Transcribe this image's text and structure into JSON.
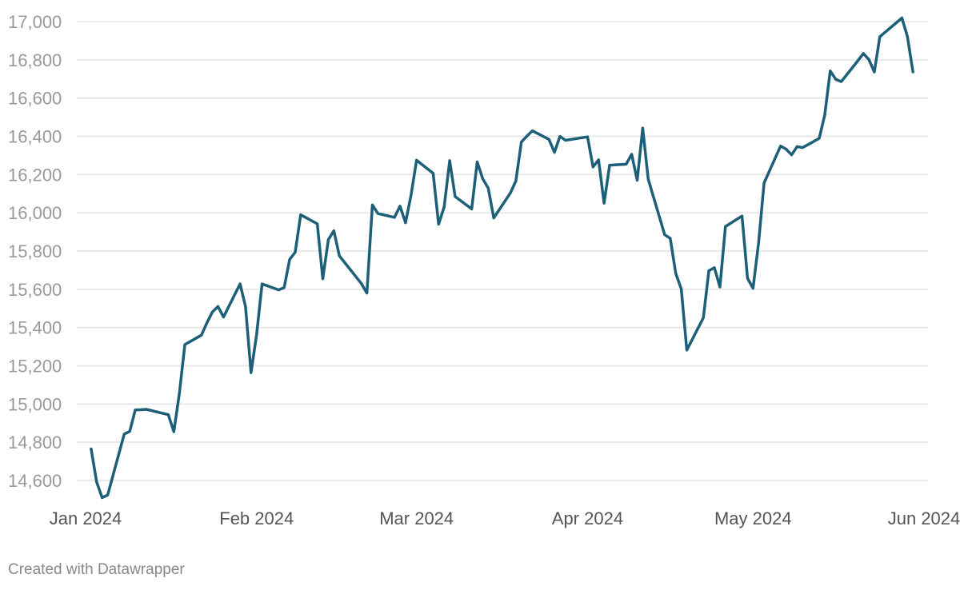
{
  "chart_data": {
    "type": "line",
    "title": "",
    "xlabel": "",
    "ylabel": "",
    "ylim": [
      14500,
      17100
    ],
    "yticks": [
      14600,
      14800,
      15000,
      15200,
      15400,
      15600,
      15800,
      16000,
      16200,
      16400,
      16600,
      16800,
      17000
    ],
    "ytick_labels": [
      "14,600",
      "14,800",
      "15,000",
      "15,200",
      "15,400",
      "15,600",
      "15,800",
      "16,000",
      "16,200",
      "16,400",
      "16,600",
      "16,800",
      "17,000"
    ],
    "xticks": [
      "2024-01-01",
      "2024-02-01",
      "2024-03-01",
      "2024-04-01",
      "2024-05-01",
      "2024-06-01"
    ],
    "xtick_labels": [
      "Jan 2024",
      "Feb 2024",
      "Mar 2024",
      "Apr 2024",
      "May 2024",
      "Jun 2024"
    ],
    "grid": true,
    "color": "#1d5f78",
    "series": [
      {
        "points": [
          [
            "2024-01-02",
            14765
          ],
          [
            "2024-01-03",
            14592
          ],
          [
            "2024-01-04",
            14510
          ],
          [
            "2024-01-05",
            14524
          ],
          [
            "2024-01-08",
            14843
          ],
          [
            "2024-01-09",
            14857
          ],
          [
            "2024-01-10",
            14969
          ],
          [
            "2024-01-11",
            14970
          ],
          [
            "2024-01-12",
            14972
          ],
          [
            "2024-01-16",
            14944
          ],
          [
            "2024-01-17",
            14855
          ],
          [
            "2024-01-18",
            15055
          ],
          [
            "2024-01-19",
            15311
          ],
          [
            "2024-01-22",
            15360
          ],
          [
            "2024-01-23",
            15425
          ],
          [
            "2024-01-24",
            15482
          ],
          [
            "2024-01-25",
            15510
          ],
          [
            "2024-01-26",
            15455
          ],
          [
            "2024-01-29",
            15628
          ],
          [
            "2024-01-30",
            15509
          ],
          [
            "2024-01-31",
            15164
          ],
          [
            "2024-02-01",
            15361
          ],
          [
            "2024-02-02",
            15628
          ],
          [
            "2024-02-05",
            15597
          ],
          [
            "2024-02-06",
            15609
          ],
          [
            "2024-02-07",
            15756
          ],
          [
            "2024-02-08",
            15794
          ],
          [
            "2024-02-09",
            15990
          ],
          [
            "2024-02-12",
            15942
          ],
          [
            "2024-02-13",
            15655
          ],
          [
            "2024-02-14",
            15859
          ],
          [
            "2024-02-15",
            15906
          ],
          [
            "2024-02-16",
            15775
          ],
          [
            "2024-02-20",
            15630
          ],
          [
            "2024-02-21",
            15580
          ],
          [
            "2024-02-22",
            16041
          ],
          [
            "2024-02-23",
            15996
          ],
          [
            "2024-02-26",
            15976
          ],
          [
            "2024-02-27",
            16035
          ],
          [
            "2024-02-28",
            15948
          ],
          [
            "2024-02-29",
            16092
          ],
          [
            "2024-03-01",
            16275
          ],
          [
            "2024-03-04",
            16207
          ],
          [
            "2024-03-05",
            15940
          ],
          [
            "2024-03-06",
            16031
          ],
          [
            "2024-03-07",
            16273
          ],
          [
            "2024-03-08",
            16085
          ],
          [
            "2024-03-11",
            16020
          ],
          [
            "2024-03-12",
            16266
          ],
          [
            "2024-03-13",
            16178
          ],
          [
            "2024-03-14",
            16129
          ],
          [
            "2024-03-15",
            15973
          ],
          [
            "2024-03-18",
            16103
          ],
          [
            "2024-03-19",
            16166
          ],
          [
            "2024-03-20",
            16370
          ],
          [
            "2024-03-21",
            16401
          ],
          [
            "2024-03-22",
            16429
          ],
          [
            "2024-03-25",
            16384
          ],
          [
            "2024-03-26",
            16316
          ],
          [
            "2024-03-27",
            16400
          ],
          [
            "2024-03-28",
            16379
          ],
          [
            "2024-04-01",
            16397
          ],
          [
            "2024-04-02",
            16240
          ],
          [
            "2024-04-03",
            16277
          ],
          [
            "2024-04-04",
            16050
          ],
          [
            "2024-04-05",
            16249
          ],
          [
            "2024-04-08",
            16254
          ],
          [
            "2024-04-09",
            16306
          ],
          [
            "2024-04-10",
            16170
          ],
          [
            "2024-04-11",
            16443
          ],
          [
            "2024-04-12",
            16175
          ],
          [
            "2024-04-15",
            15885
          ],
          [
            "2024-04-16",
            15866
          ],
          [
            "2024-04-17",
            15683
          ],
          [
            "2024-04-18",
            15601
          ],
          [
            "2024-04-19",
            15282
          ],
          [
            "2024-04-22",
            15451
          ],
          [
            "2024-04-23",
            15697
          ],
          [
            "2024-04-24",
            15713
          ],
          [
            "2024-04-25",
            15612
          ],
          [
            "2024-04-26",
            15928
          ],
          [
            "2024-04-29",
            15983
          ],
          [
            "2024-04-30",
            15658
          ],
          [
            "2024-05-01",
            15605
          ],
          [
            "2024-05-02",
            15841
          ],
          [
            "2024-05-03",
            16156
          ],
          [
            "2024-05-06",
            16349
          ],
          [
            "2024-05-07",
            16333
          ],
          [
            "2024-05-08",
            16303
          ],
          [
            "2024-05-09",
            16346
          ],
          [
            "2024-05-10",
            16341
          ],
          [
            "2024-05-13",
            16389
          ],
          [
            "2024-05-14",
            16511
          ],
          [
            "2024-05-15",
            16742
          ],
          [
            "2024-05-16",
            16698
          ],
          [
            "2024-05-17",
            16686
          ],
          [
            "2024-05-20",
            16795
          ],
          [
            "2024-05-21",
            16833
          ],
          [
            "2024-05-22",
            16802
          ],
          [
            "2024-05-23",
            16736
          ],
          [
            "2024-05-24",
            16921
          ],
          [
            "2024-05-28",
            17019
          ],
          [
            "2024-05-29",
            16921
          ],
          [
            "2024-05-30",
            16737
          ]
        ]
      }
    ]
  },
  "footer": {
    "credit": "Created with Datawrapper"
  }
}
